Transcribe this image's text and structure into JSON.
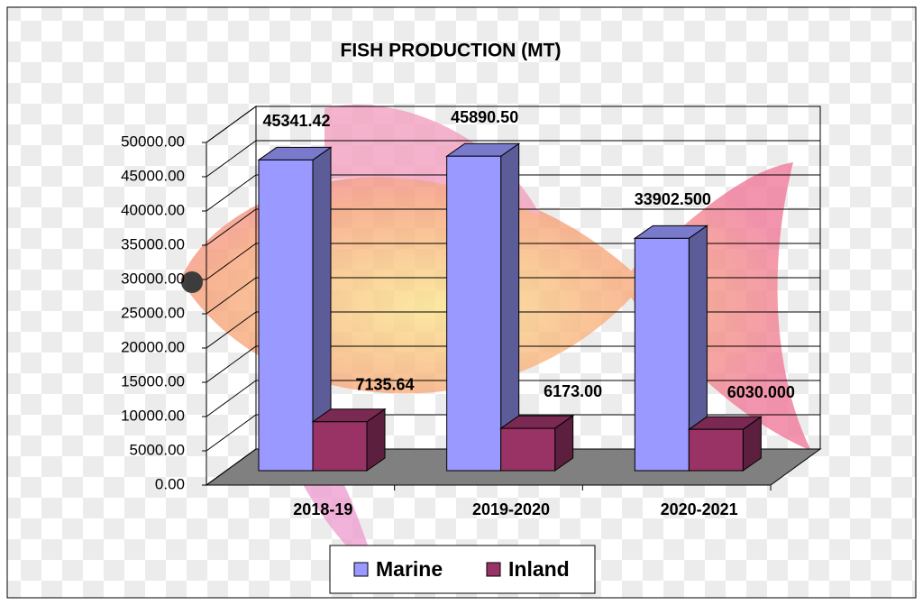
{
  "chart_data": {
    "type": "bar3d",
    "title": "FISH PRODUCTION (MT)",
    "categories": [
      "2018-19",
      "2019-2020",
      "2020-2021"
    ],
    "series": [
      {
        "name": "Marine",
        "color": "#9999ff",
        "values": [
          45341.42,
          45890.5,
          33902.5
        ],
        "value_labels": [
          "45341.42",
          "45890.50",
          "33902.500"
        ]
      },
      {
        "name": "Inland",
        "color": "#993366",
        "values": [
          7135.64,
          6173.0,
          6030.0
        ],
        "value_labels": [
          "7135.64",
          "6173.00",
          "6030.000"
        ]
      }
    ],
    "ylim": [
      0,
      50000
    ],
    "yticks": [
      {
        "value": 0,
        "label": "0.00"
      },
      {
        "value": 5000,
        "label": "5000.00"
      },
      {
        "value": 10000,
        "label": "10000.00"
      },
      {
        "value": 15000,
        "label": "15000.00"
      },
      {
        "value": 20000,
        "label": "20000.00"
      },
      {
        "value": 25000,
        "label": "25000.00"
      },
      {
        "value": 30000,
        "label": "30000.00"
      },
      {
        "value": 35000,
        "label": "35000.00"
      },
      {
        "value": 40000,
        "label": "40000.00"
      },
      {
        "value": 45000,
        "label": "45000.00"
      },
      {
        "value": 50000,
        "label": "50000.00"
      }
    ],
    "grid": true,
    "legend": "bottom"
  }
}
